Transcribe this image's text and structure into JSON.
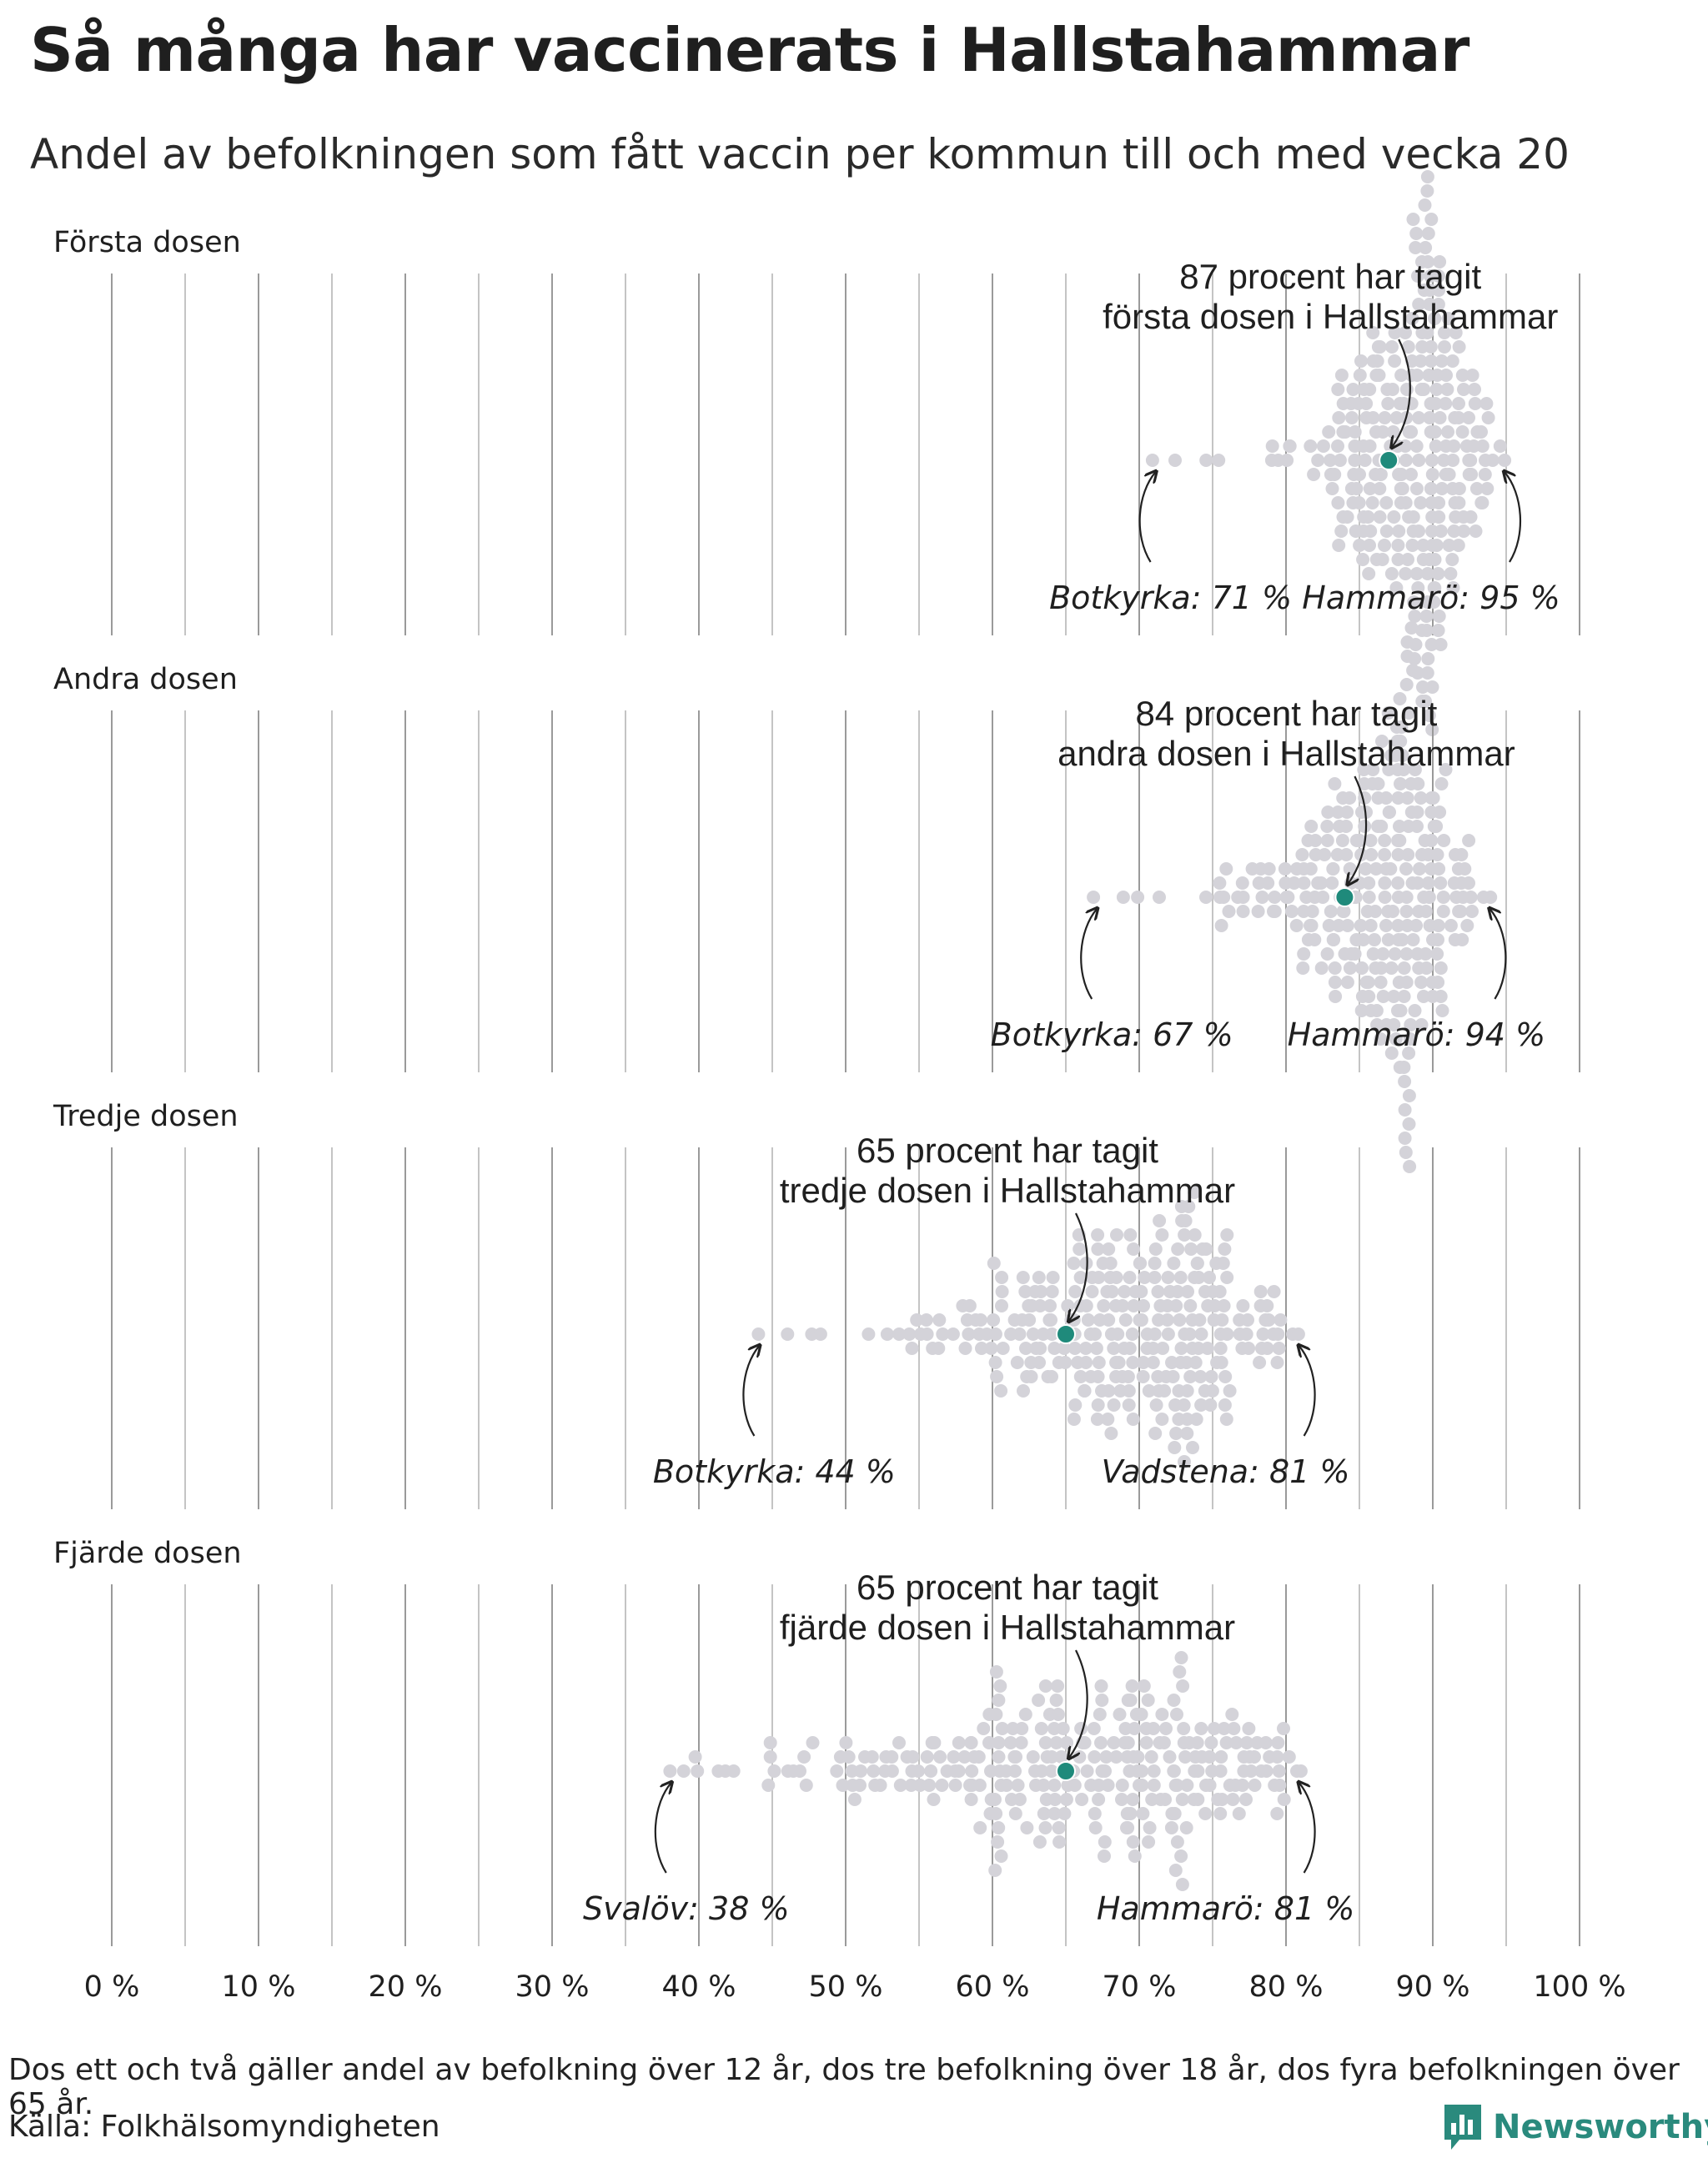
{
  "title": "Så många har vaccinerats i Hallstahammar",
  "subtitle": "Andel av befolkningen som fått vaccin per kommun till och med vecka 20",
  "footnote": "Dos ett och två gäller andel av befolkning över 12 år, dos tre befolkning över 18 år, dos fyra befolkningen över 65 år.",
  "source": "Källa: Folkhälsomyndigheten",
  "brand": "Newsworthy",
  "colors": {
    "highlight": "#1f8a7b",
    "dots": "#d4d3d9",
    "gridline": "#b5b5b5",
    "text": "#1f1f1f"
  },
  "chart_data": {
    "type": "scatter",
    "subtype": "beeswarm",
    "x_tick_labels": [
      "0 %",
      "10 %",
      "20 %",
      "30 %",
      "40 %",
      "50 %",
      "60 %",
      "70 %",
      "80 %",
      "90 %",
      "100 %"
    ],
    "xlim": [
      0,
      100
    ],
    "highlight_municipality": "Hallstahammar",
    "panels": [
      {
        "label": "Första dosen",
        "annotation_line1": "87 procent har tagit",
        "annotation_line2": "första dosen i Hallstahammar",
        "highlight_value": 87,
        "min_label": "Botkyrka: 71 %",
        "min_value": 71,
        "max_label": "Hammarö: 95 %",
        "max_value": 95,
        "distribution": {
          "count": 290,
          "center": 89,
          "spread": 2.3,
          "skew": 1.6,
          "max_stack": 20
        }
      },
      {
        "label": "Andra dosen",
        "annotation_line1": "84 procent har tagit",
        "annotation_line2": "andra dosen i Hallstahammar",
        "highlight_value": 84,
        "min_label": "Botkyrka: 67 %",
        "min_value": 67,
        "max_label": "Hammarö: 94 %",
        "max_value": 94,
        "distribution": {
          "count": 290,
          "center": 87,
          "spread": 2.8,
          "skew": 1.7,
          "max_stack": 20
        }
      },
      {
        "label": "Tredje dosen",
        "annotation_line1": "65 procent har tagit",
        "annotation_line2": "tredje dosen i Hallstahammar",
        "highlight_value": 65,
        "min_label": "Botkyrka: 44 %",
        "min_value": 44,
        "max_label": "Vadstena: 81 %",
        "max_value": 81,
        "distribution": {
          "count": 290,
          "center": 70,
          "spread": 5.0,
          "skew": 1.5,
          "max_stack": 20
        }
      },
      {
        "label": "Fjärde dosen",
        "annotation_line1": "65 procent har tagit",
        "annotation_line2": "fjärde dosen i Hallstahammar",
        "highlight_value": 65,
        "min_label": "Svalöv: 38 %",
        "min_value": 38,
        "max_label": "Hammarö: 81 %",
        "max_value": 81,
        "distribution": {
          "count": 290,
          "center": 67,
          "spread": 8.0,
          "skew": 1.3,
          "max_stack": 18
        }
      }
    ]
  }
}
